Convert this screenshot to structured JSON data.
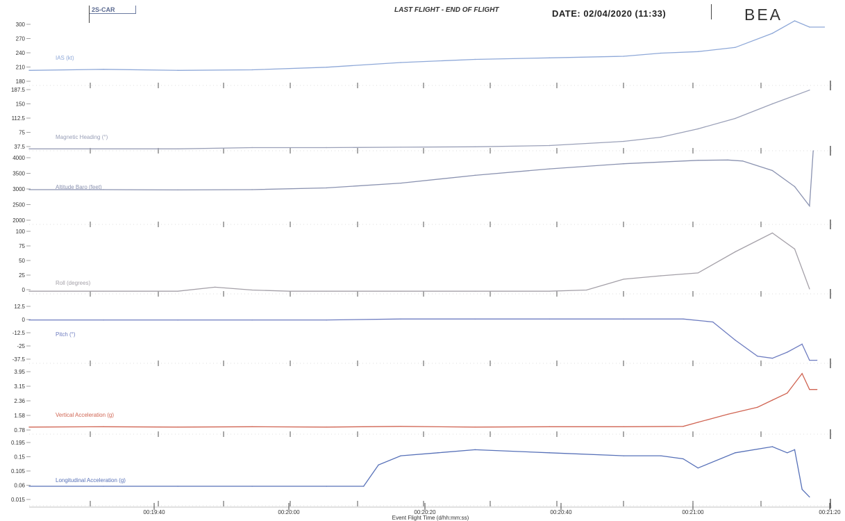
{
  "header": {
    "registration": "2S-CAR",
    "flight_label": "LAST FLIGHT - END OF FLIGHT",
    "date_label": "DATE: 02/04/2020 (11:33)",
    "logo_text": "BEA"
  },
  "x_axis": {
    "label": "Event Flight Time (d/hh:mm:ss)",
    "ticks": [
      "00:19:40",
      "00:20:00",
      "00:20:20",
      "00:20:40",
      "00:21:00",
      "00:21:20"
    ]
  },
  "chart_data": [
    {
      "type": "line",
      "id": "ias",
      "ylabel": "IAS (kt)",
      "yticks": [
        "300",
        "270",
        "240",
        "210",
        "180"
      ],
      "ylim": [
        180,
        300
      ],
      "color": "#8ea8d8",
      "series": [
        {
          "name": "IAS (kt)",
          "x": [
            0,
            10,
            20,
            30,
            40,
            50,
            60,
            70,
            80,
            85,
            90,
            95,
            100,
            103,
            105,
            107
          ],
          "values": [
            205,
            207,
            205,
            206,
            211,
            220,
            226,
            229,
            232,
            238,
            241,
            249,
            276,
            300,
            288,
            288
          ]
        }
      ]
    },
    {
      "type": "line",
      "id": "heading",
      "ylabel": "Magnetic Heading (°)",
      "yticks": [
        "187.5",
        "150",
        "112.5",
        "75",
        "37.5"
      ],
      "ylim": [
        37.5,
        187.5
      ],
      "color": "#9aa0b8",
      "series": [
        {
          "name": "Magnetic Heading (°)",
          "x": [
            0,
            20,
            30,
            40,
            50,
            60,
            70,
            80,
            85,
            90,
            95,
            100,
            105
          ],
          "values": [
            37,
            37,
            40,
            40,
            41,
            42,
            45,
            55,
            65,
            85,
            110,
            145,
            178
          ]
        }
      ]
    },
    {
      "type": "line",
      "id": "altitude",
      "ylabel": "Altitude Baro (feet)",
      "yticks": [
        "4000",
        "3500",
        "3000",
        "2500",
        "2000"
      ],
      "ylim": [
        2000,
        4000
      ],
      "color": "#8a92b0",
      "series": [
        {
          "name": "Altitude Baro (feet)",
          "x": [
            0,
            10,
            20,
            30,
            40,
            50,
            60,
            70,
            80,
            90,
            94,
            96,
            100,
            103,
            105,
            105.5
          ],
          "values": [
            2960,
            2960,
            2950,
            2960,
            3010,
            3150,
            3380,
            3570,
            3720,
            3820,
            3830,
            3800,
            3520,
            3050,
            2480,
            4100
          ]
        }
      ]
    },
    {
      "type": "line",
      "id": "roll",
      "ylabel": "Roll (degrees)",
      "yticks": [
        "100",
        "75",
        "50",
        "25",
        "0"
      ],
      "ylim": [
        0,
        112
      ],
      "color": "#a4a0a8",
      "series": [
        {
          "name": "Roll (degrees)",
          "x": [
            0,
            10,
            20,
            25,
            30,
            35,
            40,
            50,
            60,
            70,
            75,
            80,
            85,
            90,
            95,
            100,
            103,
            105
          ],
          "values": [
            1,
            1,
            1,
            8,
            3,
            1,
            1,
            1,
            1,
            1,
            3,
            22,
            28,
            33,
            70,
            103,
            75,
            5
          ]
        }
      ]
    },
    {
      "type": "line",
      "id": "pitch",
      "ylabel": "Pitch (°)",
      "yticks": [
        "12.5",
        "0",
        "-12.5",
        "-25",
        "-37.5"
      ],
      "ylim": [
        -43,
        15
      ],
      "color": "#6d7cc0",
      "series": [
        {
          "name": "Pitch (°)",
          "x": [
            0,
            10,
            20,
            30,
            40,
            50,
            60,
            70,
            80,
            88,
            92,
            95,
            98,
            100,
            102,
            104,
            105,
            106
          ],
          "values": [
            -2,
            -2,
            -2,
            -2,
            -2,
            -1,
            -1,
            -1,
            -1,
            -1,
            -4,
            -22,
            -38,
            -40,
            -34,
            -26,
            -42,
            -42
          ]
        }
      ]
    },
    {
      "type": "line",
      "id": "vert-acc",
      "ylabel": "Vertical Acceleration (g)",
      "yticks": [
        "3.95",
        "3.15",
        "2.36",
        "1.58",
        "0.78"
      ],
      "ylim": [
        0.5,
        4.1
      ],
      "color": "#d06452",
      "series": [
        {
          "name": "Vertical Acceleration (g)",
          "x": [
            0,
            10,
            20,
            30,
            40,
            50,
            60,
            70,
            80,
            88,
            90,
            94,
            98,
            100,
            102,
            104,
            105,
            106
          ],
          "values": [
            0.78,
            0.8,
            0.78,
            0.8,
            0.78,
            0.82,
            0.78,
            0.8,
            0.8,
            0.82,
            1.05,
            1.5,
            1.9,
            2.3,
            2.7,
            3.8,
            2.9,
            2.9
          ]
        }
      ]
    },
    {
      "type": "line",
      "id": "long-acc",
      "ylabel": "Longitudinal Acceleration (g)",
      "yticks": [
        "0.195",
        "0.15",
        "0.105",
        "0.06",
        "0.015"
      ],
      "ylim": [
        0,
        0.205
      ],
      "color": "#5670b8",
      "series": [
        {
          "name": "Longitudinal Acceleration (g)",
          "x": [
            0,
            10,
            20,
            30,
            40,
            45,
            47,
            50,
            55,
            60,
            70,
            80,
            85,
            88,
            90,
            95,
            100,
            102,
            103,
            104,
            105
          ],
          "values": [
            0.05,
            0.05,
            0.05,
            0.05,
            0.05,
            0.05,
            0.12,
            0.15,
            0.16,
            0.17,
            0.16,
            0.15,
            0.15,
            0.14,
            0.11,
            0.16,
            0.18,
            0.16,
            0.17,
            0.04,
            0.015
          ]
        }
      ]
    }
  ]
}
